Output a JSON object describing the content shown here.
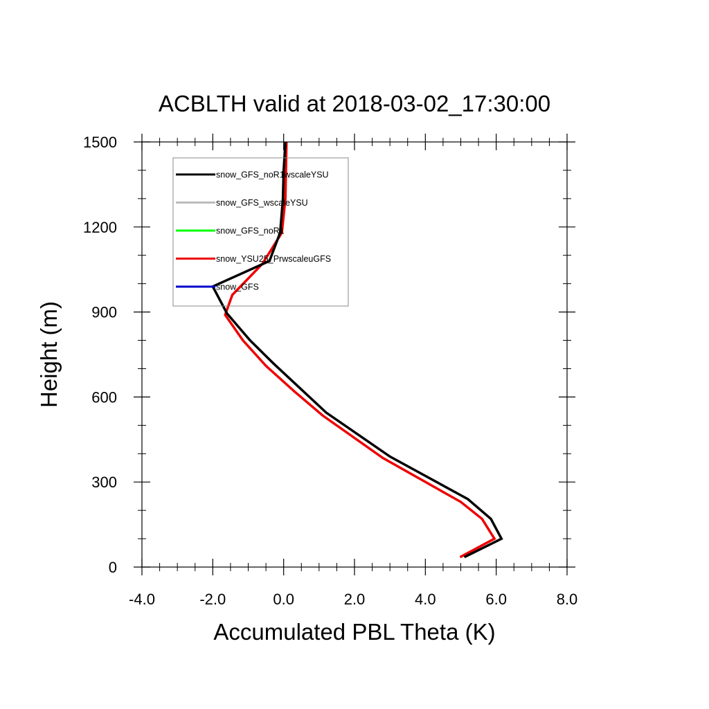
{
  "chart_data": {
    "type": "line",
    "title": "ACBLTH valid at 2018-03-02_17:30:00",
    "xlabel": "Accumulated PBL Theta (K)",
    "ylabel": "Height (m)",
    "xlim": [
      -4.0,
      8.0
    ],
    "ylim": [
      0,
      1500
    ],
    "x_ticks": [
      -4.0,
      -2.0,
      0.0,
      2.0,
      4.0,
      6.0,
      8.0
    ],
    "x_tick_labels": [
      "-4.0",
      "-2.0",
      "0.0",
      "2.0",
      "4.0",
      "6.0",
      "8.0"
    ],
    "y_ticks": [
      0,
      300,
      600,
      900,
      1200,
      1500
    ],
    "y_tick_labels": [
      "0",
      "300",
      "600",
      "900",
      "1200",
      "1500"
    ],
    "grid": false,
    "legend_position": "top-left",
    "series": [
      {
        "name": "snow_GFS_noR1wscaleYSU",
        "color": "#000000",
        "x": [
          5.1,
          6.15,
          5.85,
          5.2,
          3.0,
          1.2,
          -0.3,
          -0.95,
          -1.6,
          -2.0,
          -0.4,
          -0.1,
          -0.02,
          0.0,
          0.05
        ],
        "y": [
          35,
          100,
          170,
          240,
          390,
          545,
          720,
          800,
          895,
          990,
          1080,
          1180,
          1300,
          1400,
          1500
        ]
      },
      {
        "name": "snow_GFS_wscaleYSU",
        "color": "#bbbbbb",
        "x": [],
        "y": []
      },
      {
        "name": "snow_GFS_noR1",
        "color": "#00ff00",
        "x": [],
        "y": []
      },
      {
        "name": "snow_YSU25_PrwscaleuGFS",
        "color": "#ee0000",
        "x": [
          4.98,
          5.95,
          5.6,
          5.0,
          2.8,
          1.1,
          0.3,
          -0.5,
          -1.15,
          -1.65,
          -1.45,
          -0.6,
          -0.05,
          0.05,
          0.08
        ],
        "y": [
          35,
          100,
          170,
          230,
          385,
          535,
          620,
          710,
          800,
          890,
          960,
          1070,
          1180,
          1300,
          1500
        ]
      },
      {
        "name": "snow_GFS",
        "color": "#0000cc",
        "x": [],
        "y": []
      }
    ]
  }
}
